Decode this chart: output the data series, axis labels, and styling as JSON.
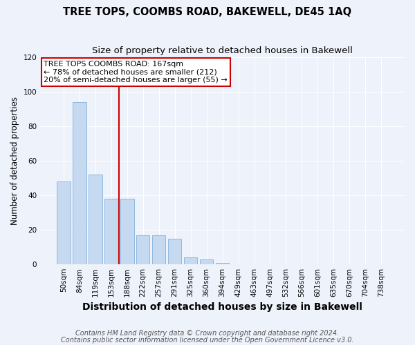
{
  "title": "TREE TOPS, COOMBS ROAD, BAKEWELL, DE45 1AQ",
  "subtitle": "Size of property relative to detached houses in Bakewell",
  "xlabel": "Distribution of detached houses by size in Bakewell",
  "ylabel": "Number of detached properties",
  "bar_labels": [
    "50sqm",
    "84sqm",
    "119sqm",
    "153sqm",
    "188sqm",
    "222sqm",
    "257sqm",
    "291sqm",
    "325sqm",
    "360sqm",
    "394sqm",
    "429sqm",
    "463sqm",
    "497sqm",
    "532sqm",
    "566sqm",
    "601sqm",
    "635sqm",
    "670sqm",
    "704sqm",
    "738sqm"
  ],
  "bar_values": [
    48,
    94,
    52,
    38,
    38,
    17,
    17,
    15,
    4,
    3,
    1,
    0,
    0,
    0,
    0,
    0,
    0,
    0,
    0,
    0,
    0
  ],
  "bar_color": "#c5d9f0",
  "bar_edgecolor": "#8fb8de",
  "vline_x": 3.5,
  "vline_color": "#cc0000",
  "ylim": [
    0,
    120
  ],
  "yticks": [
    0,
    20,
    40,
    60,
    80,
    100,
    120
  ],
  "annotation_text": "TREE TOPS COOMBS ROAD: 167sqm\n← 78% of detached houses are smaller (212)\n20% of semi-detached houses are larger (55) →",
  "annotation_box_color": "#cc0000",
  "footer_line1": "Contains HM Land Registry data © Crown copyright and database right 2024.",
  "footer_line2": "Contains public sector information licensed under the Open Government Licence v3.0.",
  "background_color": "#eef2fb",
  "grid_color": "#ffffff",
  "title_fontsize": 10.5,
  "subtitle_fontsize": 9.5,
  "xlabel_fontsize": 10,
  "ylabel_fontsize": 8.5,
  "tick_fontsize": 7.5,
  "footer_fontsize": 7,
  "annot_fontsize": 8
}
